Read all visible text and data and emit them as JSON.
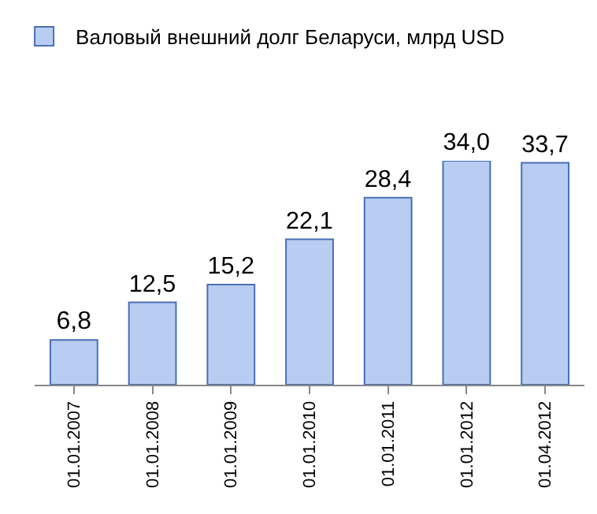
{
  "chart_data": {
    "type": "bar",
    "categories": [
      "01.01.2007",
      "01.01.2008",
      "01.01.2009",
      "01.01.2010",
      "01.01.2011",
      "01.01.2012",
      "01.04.2012"
    ],
    "series": [
      {
        "name": "Валовый внешний долг Беларуси, млрд USD",
        "color": "#b9cdf3",
        "values": [
          6.8,
          12.5,
          15.2,
          22.1,
          28.4,
          34.0,
          33.7
        ],
        "value_labels": [
          "6,8",
          "12,5",
          "15,2",
          "22,1",
          "28,4",
          "34,0",
          "33,7"
        ]
      }
    ],
    "legend": "top left"
  }
}
